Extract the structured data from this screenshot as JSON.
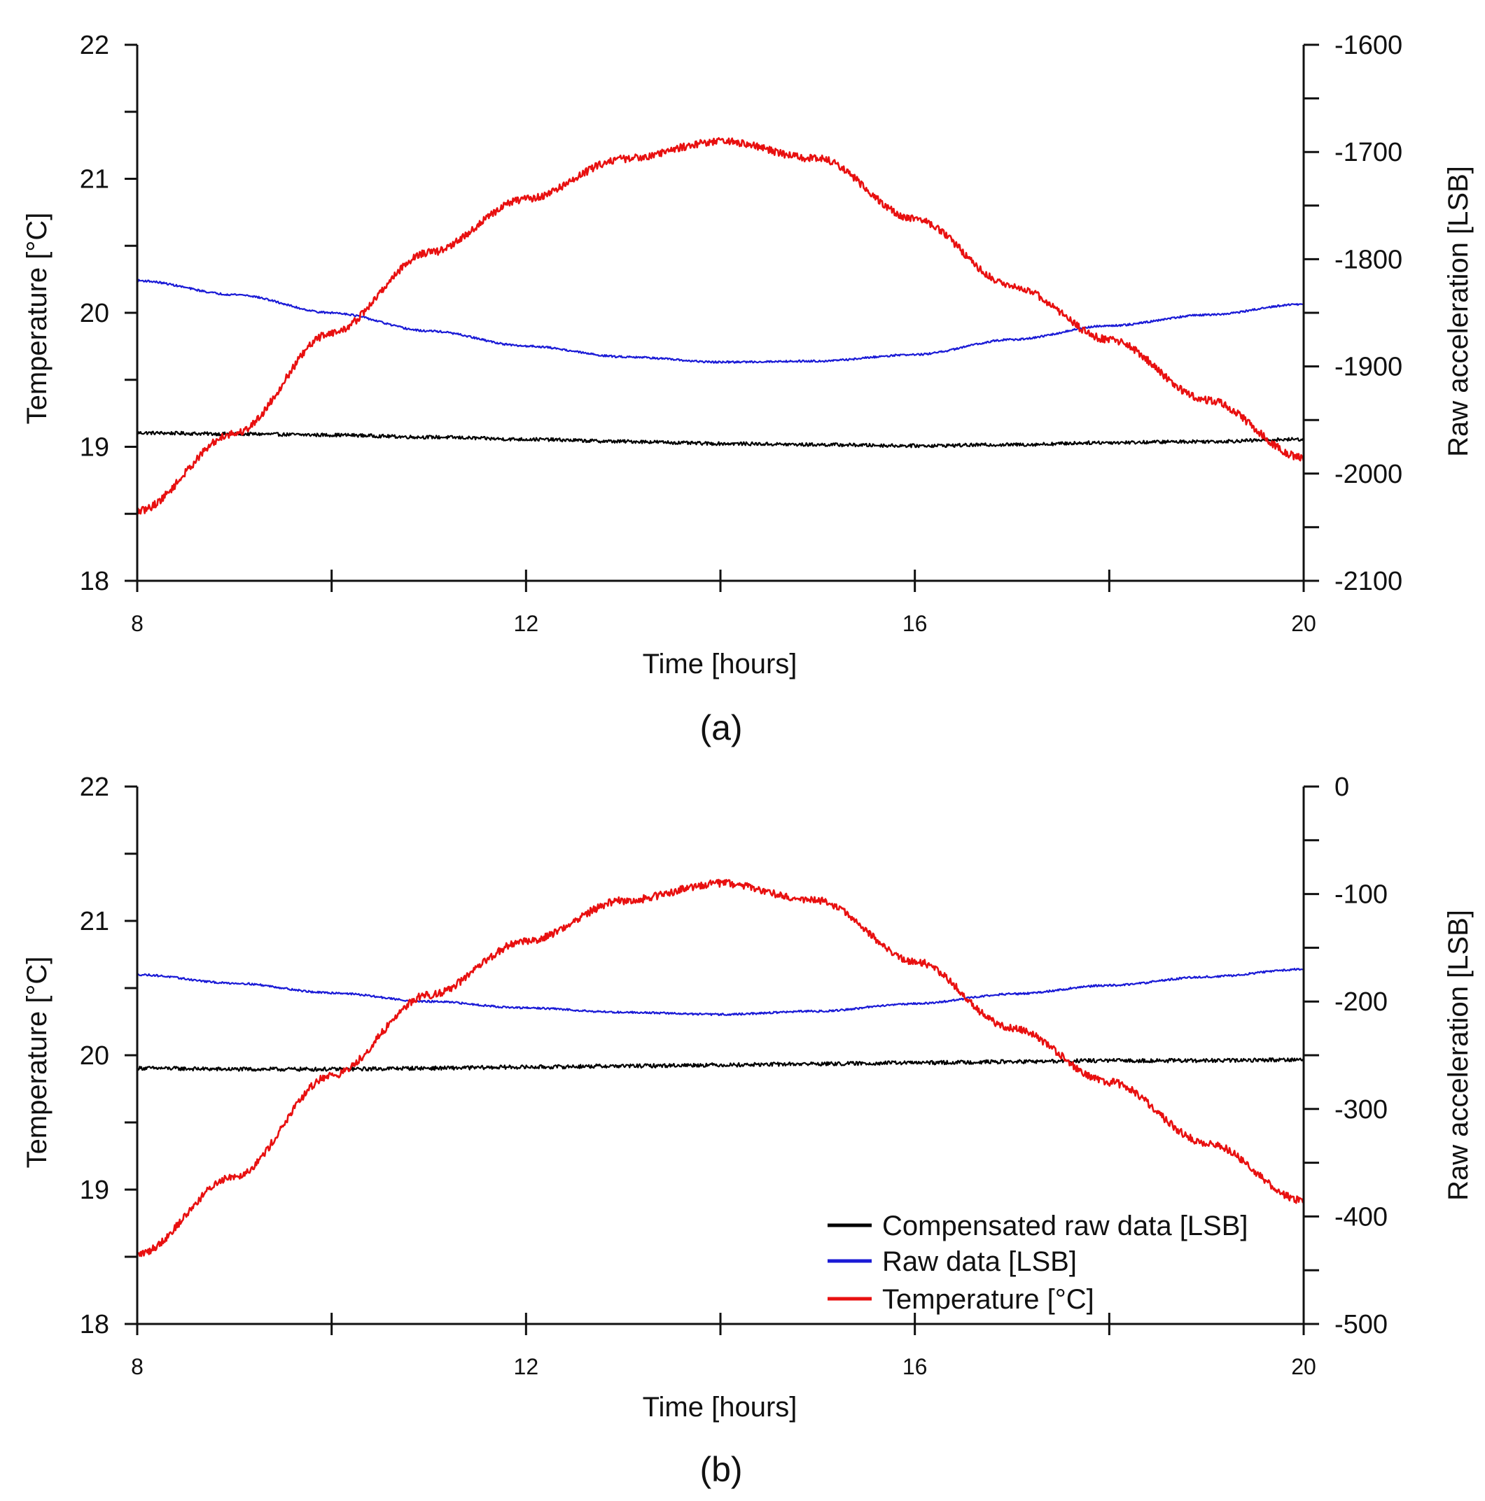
{
  "chart_data": [
    {
      "type": "line",
      "panel_label": "(a)",
      "xlabel": "Time [hours]",
      "ylabel": "Temperature [°C]",
      "y2label": "Raw acceleration [LSB]",
      "xlim": [
        8,
        20
      ],
      "ylim": [
        18,
        22
      ],
      "y2lim": [
        -2100,
        -1600
      ],
      "xticks": [
        8,
        10,
        12,
        14,
        16,
        18,
        20
      ],
      "xtick_labels": [
        "8",
        "",
        "12",
        "",
        "16",
        "",
        "20"
      ],
      "yticks": [
        18,
        19,
        20,
        21,
        22
      ],
      "ytick_labels": [
        "18",
        "19",
        "20",
        "21",
        "22"
      ],
      "y2ticks": [
        -2100,
        -2050,
        -2000,
        -1950,
        -1900,
        -1850,
        -1800,
        -1750,
        -1700,
        -1650,
        -1600
      ],
      "y2tick_labels": [
        "-2100",
        "",
        "-2000",
        "",
        "-1900",
        "",
        "-1800",
        "",
        "-1700",
        "",
        "-1600"
      ],
      "series": [
        {
          "name": "Compensated raw data [LSB]",
          "axis": "right",
          "color": "#000000",
          "noise": 1.6,
          "x": [
            8,
            9,
            10,
            11,
            12,
            13,
            14,
            15,
            16,
            17,
            18,
            19,
            20
          ],
          "values": [
            -1962,
            -1963,
            -1964,
            -1966,
            -1968,
            -1970,
            -1972,
            -1973,
            -1974,
            -1973,
            -1971,
            -1970,
            -1968
          ]
        },
        {
          "name": "Raw data [LSB]",
          "axis": "right",
          "color": "#1a1ad6",
          "noise": 0.9,
          "x": [
            8,
            9,
            10,
            11,
            12,
            13,
            14,
            15,
            16,
            17,
            18,
            19,
            20
          ],
          "values": [
            -1820,
            -1833,
            -1850,
            -1867,
            -1881,
            -1891,
            -1896,
            -1895,
            -1889,
            -1875,
            -1862,
            -1852,
            -1842
          ]
        },
        {
          "name": "Temperature [°C]",
          "axis": "left",
          "color": "#e81010",
          "noise": 0.028,
          "x": [
            8,
            9,
            10,
            11,
            12,
            13,
            14,
            15,
            16,
            17,
            18,
            19,
            20
          ],
          "values": [
            18.52,
            19.1,
            19.85,
            20.45,
            20.85,
            21.15,
            21.28,
            21.15,
            20.7,
            20.2,
            19.8,
            19.35,
            18.92
          ]
        }
      ]
    },
    {
      "type": "line",
      "panel_label": "(b)",
      "xlabel": "Time [hours]",
      "ylabel": "Temperature [°C]",
      "y2label": "Raw acceleration [LSB]",
      "xlim": [
        8,
        20
      ],
      "ylim": [
        18,
        22
      ],
      "y2lim": [
        -500,
        0
      ],
      "xticks": [
        8,
        10,
        12,
        14,
        16,
        18,
        20
      ],
      "xtick_labels": [
        "8",
        "",
        "12",
        "",
        "16",
        "",
        "20"
      ],
      "yticks": [
        18,
        19,
        20,
        21,
        22
      ],
      "ytick_labels": [
        "18",
        "19",
        "20",
        "21",
        "22"
      ],
      "y2ticks": [
        -500,
        -450,
        -400,
        -350,
        -300,
        -250,
        -200,
        -150,
        -100,
        -50,
        0
      ],
      "y2tick_labels": [
        "-500",
        "",
        "-400",
        "",
        "-300",
        "",
        "-200",
        "",
        "-100",
        "",
        "0"
      ],
      "legend": {
        "position": "lower-right",
        "entries": [
          "Compensated raw data [LSB]",
          "Raw data [LSB]",
          "Temperature [°C]"
        ]
      },
      "series": [
        {
          "name": "Compensated raw data [LSB]",
          "axis": "right",
          "color": "#000000",
          "noise": 1.8,
          "x": [
            8,
            9,
            10,
            11,
            12,
            13,
            14,
            15,
            16,
            17,
            18,
            19,
            20
          ],
          "values": [
            -262,
            -263,
            -263,
            -262,
            -261,
            -260,
            -259,
            -258,
            -257,
            -256,
            -255,
            -255,
            -254
          ]
        },
        {
          "name": "Raw data [LSB]",
          "axis": "right",
          "color": "#1a1ad6",
          "noise": 0.9,
          "x": [
            8,
            9,
            10,
            11,
            12,
            13,
            14,
            15,
            16,
            17,
            18,
            19,
            20
          ],
          "values": [
            -175,
            -183,
            -192,
            -200,
            -206,
            -210,
            -212,
            -209,
            -202,
            -193,
            -185,
            -177,
            -170
          ]
        },
        {
          "name": "Temperature [°C]",
          "axis": "left",
          "color": "#e81010",
          "noise": 0.028,
          "x": [
            8,
            9,
            10,
            11,
            12,
            13,
            14,
            15,
            16,
            17,
            18,
            19,
            20
          ],
          "values": [
            18.52,
            19.1,
            19.85,
            20.45,
            20.85,
            21.15,
            21.28,
            21.15,
            20.7,
            20.2,
            19.8,
            19.35,
            18.92
          ]
        }
      ]
    }
  ]
}
